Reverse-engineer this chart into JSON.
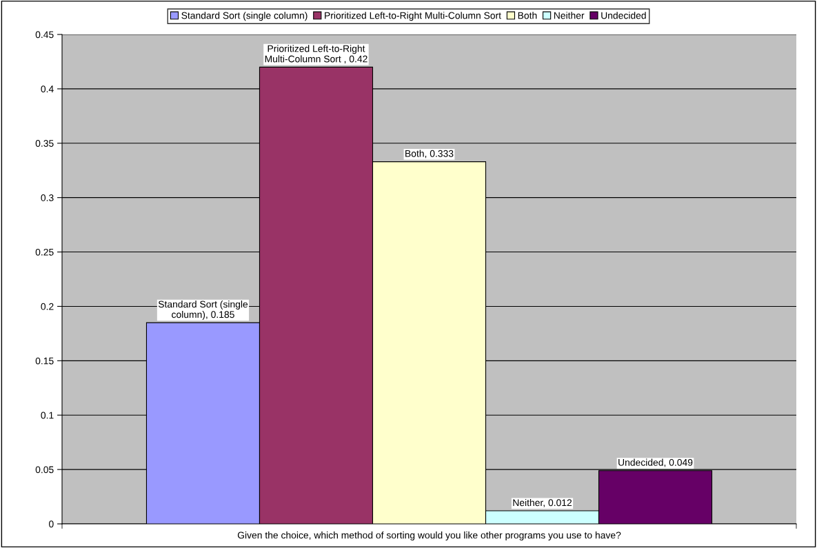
{
  "chart_data": {
    "type": "bar",
    "categories": [
      "Given the choice, which method of sorting would you like other programs you use to have?"
    ],
    "series": [
      {
        "name": "Standard Sort (single column)",
        "color": "#9999ff",
        "values": [
          0.185
        ],
        "value_labels": [
          "Standard Sort (single column), 0.185"
        ]
      },
      {
        "name": "Prioritized Left-to-Right Multi-Column Sort",
        "color": "#993366",
        "values": [
          0.42
        ],
        "value_labels": [
          "Prioritized Left-to-Right Multi-Column Sort , 0.42"
        ]
      },
      {
        "name": "Both",
        "color": "#ffffcc",
        "values": [
          0.333
        ],
        "value_labels": [
          "Both, 0.333"
        ]
      },
      {
        "name": "Neither",
        "color": "#ccffff",
        "values": [
          0.012
        ],
        "value_labels": [
          "Neither, 0.012"
        ]
      },
      {
        "name": "Undecided",
        "color": "#660066",
        "values": [
          0.049
        ],
        "value_labels": [
          "Undecided, 0.049"
        ]
      }
    ],
    "ylim": [
      0,
      0.45
    ],
    "yticks": [
      0,
      0.05,
      0.1,
      0.15,
      0.2,
      0.25,
      0.3,
      0.35,
      0.4,
      0.45
    ],
    "grid": "y",
    "legend": "top"
  }
}
